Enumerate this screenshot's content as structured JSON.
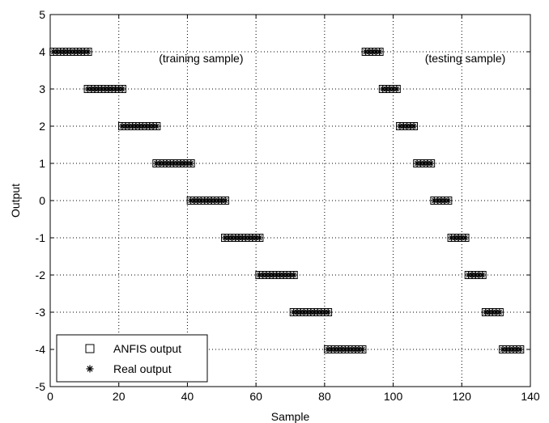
{
  "chart_data": {
    "type": "scatter",
    "title": "",
    "xlabel": "Sample",
    "ylabel": "Output",
    "xlim": [
      0,
      140
    ],
    "ylim": [
      -5,
      5
    ],
    "xticks": [
      "0",
      "20",
      "40",
      "60",
      "80",
      "100",
      "120",
      "140"
    ],
    "yticks": [
      "5",
      "4",
      "3",
      "2",
      "1",
      "0",
      "-1",
      "-2",
      "-3",
      "-4",
      "-5"
    ],
    "grid": true,
    "legend_position": "bottom-left",
    "annotations": [
      "(training sample)",
      "(testing sample)"
    ],
    "series": [
      {
        "name": "ANFIS output",
        "marker": "square",
        "color": "#000000",
        "groups": [
          {
            "x_start": 1,
            "x_end": 11,
            "y": 4
          },
          {
            "x_start": 11,
            "x_end": 21,
            "y": 3
          },
          {
            "x_start": 21,
            "x_end": 31,
            "y": 2
          },
          {
            "x_start": 31,
            "x_end": 41,
            "y": 1
          },
          {
            "x_start": 41,
            "x_end": 51,
            "y": 0
          },
          {
            "x_start": 51,
            "x_end": 61,
            "y": -1
          },
          {
            "x_start": 61,
            "x_end": 71,
            "y": -2
          },
          {
            "x_start": 71,
            "x_end": 81,
            "y": -3
          },
          {
            "x_start": 81,
            "x_end": 91,
            "y": -4
          },
          {
            "x_start": 92,
            "x_end": 96,
            "y": 4
          },
          {
            "x_start": 97,
            "x_end": 101,
            "y": 3
          },
          {
            "x_start": 102,
            "x_end": 106,
            "y": 2
          },
          {
            "x_start": 107,
            "x_end": 111,
            "y": 1
          },
          {
            "x_start": 112,
            "x_end": 116,
            "y": 0
          },
          {
            "x_start": 117,
            "x_end": 121,
            "y": -1
          },
          {
            "x_start": 122,
            "x_end": 126,
            "y": -2
          },
          {
            "x_start": 127,
            "x_end": 131,
            "y": -3
          },
          {
            "x_start": 132,
            "x_end": 137,
            "y": -4
          }
        ]
      },
      {
        "name": "Real output",
        "marker": "asterisk",
        "color": "#000000",
        "groups": [
          {
            "x_start": 1,
            "x_end": 11,
            "y": 4
          },
          {
            "x_start": 11,
            "x_end": 21,
            "y": 3
          },
          {
            "x_start": 21,
            "x_end": 31,
            "y": 2
          },
          {
            "x_start": 31,
            "x_end": 41,
            "y": 1
          },
          {
            "x_start": 41,
            "x_end": 51,
            "y": 0
          },
          {
            "x_start": 51,
            "x_end": 61,
            "y": -1
          },
          {
            "x_start": 61,
            "x_end": 71,
            "y": -2
          },
          {
            "x_start": 71,
            "x_end": 81,
            "y": -3
          },
          {
            "x_start": 81,
            "x_end": 91,
            "y": -4
          },
          {
            "x_start": 92,
            "x_end": 96,
            "y": 4
          },
          {
            "x_start": 97,
            "x_end": 101,
            "y": 3
          },
          {
            "x_start": 102,
            "x_end": 106,
            "y": 2
          },
          {
            "x_start": 107,
            "x_end": 111,
            "y": 1
          },
          {
            "x_start": 112,
            "x_end": 116,
            "y": 0
          },
          {
            "x_start": 117,
            "x_end": 121,
            "y": -1
          },
          {
            "x_start": 122,
            "x_end": 126,
            "y": -2
          },
          {
            "x_start": 127,
            "x_end": 131,
            "y": -3
          },
          {
            "x_start": 132,
            "x_end": 137,
            "y": -4
          }
        ]
      }
    ]
  }
}
